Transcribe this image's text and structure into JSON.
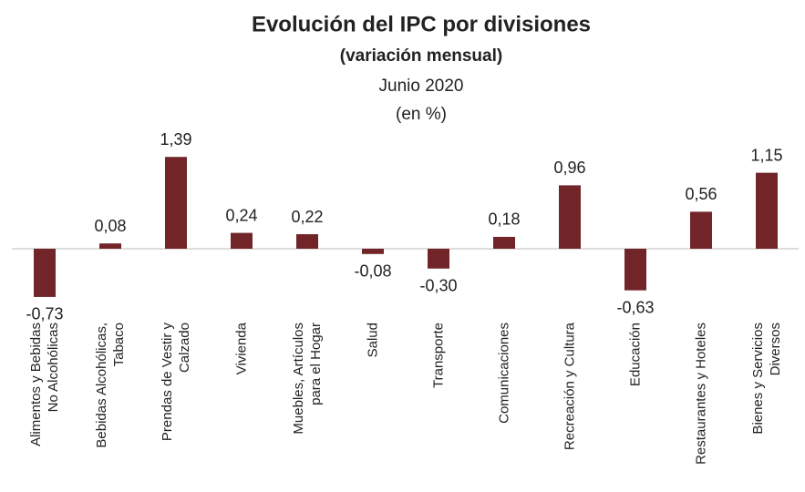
{
  "chart_data": {
    "type": "bar",
    "title": "Evolución del IPC por divisiones",
    "subtitle": "(variación mensual)",
    "period": "Junio 2020",
    "unit_note": "(en %)",
    "categories": [
      "Alimentos y Bebidas\nNo Alcohólicas",
      "Bebidas Alcohólicas,\nTabaco",
      "Prendas de Vestir y\nCalzado",
      "Vivienda",
      "Muebles, Artículos\npara el Hogar",
      "Salud",
      "Transporte",
      "Comunicaciones",
      "Recreación y Cultura",
      "Educación",
      "Restaurantes y Hoteles",
      "Bienes y Servicios\nDiversos"
    ],
    "values": [
      -0.73,
      0.08,
      1.39,
      0.24,
      0.22,
      -0.08,
      -0.3,
      0.18,
      0.96,
      -0.63,
      0.56,
      1.15
    ],
    "value_labels": [
      "-0,73",
      "0,08",
      "1,39",
      "0,24",
      "0,22",
      "-0,08",
      "-0,30",
      "0,18",
      "0,96",
      "-0,63",
      "0,56",
      "1,15"
    ],
    "color": "#722528"
  }
}
